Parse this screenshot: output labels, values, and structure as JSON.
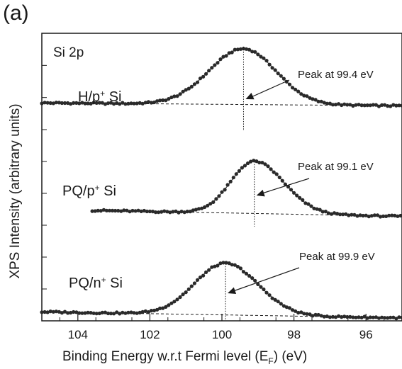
{
  "chart_data": {
    "type": "scatter",
    "panel_label": "(a)",
    "title": "Si 2p",
    "xlabel_main": "Binding Energy w.r.t Fermi level (E",
    "xlabel_sub": "F",
    "xlabel_end": ") (eV)",
    "ylabel": "XPS Intensity (arbitrary units)",
    "xlim": [
      105,
      95
    ],
    "x_ticks": [
      104,
      102,
      100,
      98,
      96
    ],
    "x_reversed": true,
    "y_ticks_labeled": false,
    "series": [
      {
        "label_main": "H/p",
        "label_sup": "+",
        "label_end": " Si",
        "peak_text": "Peak at 99.4 eV",
        "peak_position": 99.4,
        "x_start": 105.0,
        "x_end": 95.0,
        "peak_x": 99.4,
        "baseline_left": 0.66,
        "baseline_right": 0.57,
        "amplitude": 1.75,
        "sigma_left": 0.95,
        "sigma_right": 0.9
      },
      {
        "label_main": "PQ/p",
        "label_sup": "+",
        "label_end": " Si",
        "peak_text": "Peak at 99.1 eV",
        "peak_position": 99.1,
        "x_start": 103.6,
        "x_end": 95.0,
        "peak_x": 99.1,
        "baseline_left": 0.32,
        "baseline_right": 0.1,
        "amplitude": 1.64,
        "sigma_left": 0.65,
        "sigma_right": 0.82
      },
      {
        "label_main": "PQ/n",
        "label_sup": "+",
        "label_end": " Si",
        "peak_text": "Peak at 99.9 eV",
        "peak_position": 99.9,
        "x_start": 105.0,
        "x_end": 95.0,
        "peak_x": 99.9,
        "baseline_left": 0.06,
        "baseline_right": -0.13,
        "amplitude": 1.62,
        "sigma_left": 0.85,
        "sigma_right": 0.9
      }
    ]
  }
}
